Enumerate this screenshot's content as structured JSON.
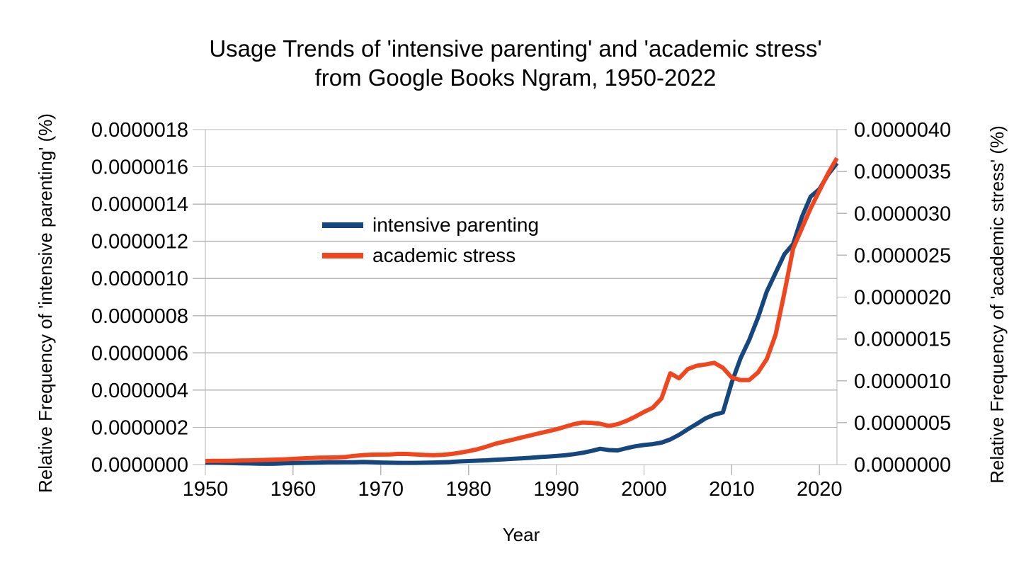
{
  "header": {
    "title_line1": "Usage Trends of 'intensive parenting' and 'academic stress'",
    "title_line2": "from Google Books Ngram, 1950-2022"
  },
  "chart_data": {
    "type": "line",
    "title": "Usage Trends of 'intensive parenting' and 'academic stress' from Google Books Ngram, 1950-2022",
    "value_unit": "percent",
    "value_scale": 1e-06,
    "x": [
      1950,
      1951,
      1952,
      1953,
      1954,
      1955,
      1956,
      1957,
      1958,
      1959,
      1960,
      1961,
      1962,
      1963,
      1964,
      1965,
      1966,
      1967,
      1968,
      1969,
      1970,
      1971,
      1972,
      1973,
      1974,
      1975,
      1976,
      1977,
      1978,
      1979,
      1980,
      1981,
      1982,
      1983,
      1984,
      1985,
      1986,
      1987,
      1988,
      1989,
      1990,
      1991,
      1992,
      1993,
      1994,
      1995,
      1996,
      1997,
      1998,
      1999,
      2000,
      2001,
      2002,
      2003,
      2004,
      2005,
      2006,
      2007,
      2008,
      2009,
      2010,
      2011,
      2012,
      2013,
      2014,
      2015,
      2016,
      2017,
      2018,
      2019,
      2020,
      2021,
      2022
    ],
    "series": [
      {
        "name": "intensive parenting",
        "axis": "left",
        "color": "#15467D",
        "values_micro": [
          0.01,
          0.01,
          0.009,
          0.008,
          0.007,
          0.006,
          0.005,
          0.004,
          0.005,
          0.007,
          0.008,
          0.009,
          0.01,
          0.011,
          0.012,
          0.012,
          0.013,
          0.013,
          0.014,
          0.013,
          0.011,
          0.01,
          0.009,
          0.009,
          0.009,
          0.01,
          0.011,
          0.012,
          0.014,
          0.017,
          0.019,
          0.021,
          0.023,
          0.026,
          0.028,
          0.031,
          0.033,
          0.036,
          0.04,
          0.043,
          0.046,
          0.05,
          0.056,
          0.063,
          0.073,
          0.085,
          0.078,
          0.076,
          0.088,
          0.098,
          0.105,
          0.11,
          0.118,
          0.135,
          0.16,
          0.19,
          0.218,
          0.248,
          0.268,
          0.28,
          0.44,
          0.57,
          0.67,
          0.79,
          0.93,
          1.03,
          1.13,
          1.185,
          1.33,
          1.44,
          1.48,
          1.56,
          1.62
        ]
      },
      {
        "name": "academic stress",
        "axis": "right",
        "color": "#F1461D",
        "values_micro": [
          0.042,
          0.044,
          0.045,
          0.046,
          0.048,
          0.05,
          0.053,
          0.056,
          0.059,
          0.063,
          0.068,
          0.074,
          0.079,
          0.083,
          0.084,
          0.085,
          0.091,
          0.104,
          0.113,
          0.118,
          0.119,
          0.121,
          0.128,
          0.127,
          0.121,
          0.115,
          0.112,
          0.116,
          0.126,
          0.141,
          0.16,
          0.183,
          0.212,
          0.247,
          0.272,
          0.296,
          0.322,
          0.347,
          0.372,
          0.396,
          0.421,
          0.452,
          0.482,
          0.502,
          0.498,
          0.487,
          0.462,
          0.482,
          0.522,
          0.572,
          0.628,
          0.678,
          0.79,
          1.09,
          1.03,
          1.14,
          1.18,
          1.195,
          1.215,
          1.155,
          1.04,
          1.01,
          1.01,
          1.1,
          1.26,
          1.55,
          2.05,
          2.58,
          2.82,
          3.06,
          3.27,
          3.48,
          3.66
        ]
      }
    ],
    "axes": {
      "x": {
        "label": "Year",
        "range": [
          1950,
          2022
        ],
        "ticks": [
          1950,
          1960,
          1970,
          1980,
          1990,
          2000,
          2010,
          2020
        ],
        "tick_labels": [
          "1950",
          "1960",
          "1970",
          "1980",
          "1990",
          "2000",
          "2010",
          "2020"
        ]
      },
      "y_left": {
        "label": "Relative Frequency of 'intensive parenting' (%)",
        "ylim_micro": [
          0,
          1.8
        ],
        "tick_labels": [
          "0.0000000",
          "0.0000002",
          "0.0000004",
          "0.0000006",
          "0.0000008",
          "0.0000010",
          "0.0000012",
          "0.0000014",
          "0.0000016",
          "0.0000018"
        ]
      },
      "y_right": {
        "label": "Relative Frequency of 'academic stress' (%)",
        "ylim_micro": [
          0,
          4.0
        ],
        "tick_labels": [
          "0.0000000",
          "0.0000005",
          "0.0000010",
          "0.0000015",
          "0.0000020",
          "0.0000025",
          "0.0000030",
          "0.0000035",
          "0.0000040"
        ]
      }
    },
    "legend": {
      "position": "inside-upper-left",
      "entries": [
        "intensive parenting",
        "academic stress"
      ]
    },
    "style": {
      "grid": "horizontal",
      "grid_color": "#B7B7B7",
      "text_color": "#000000",
      "background": "#FFFFFF"
    }
  }
}
